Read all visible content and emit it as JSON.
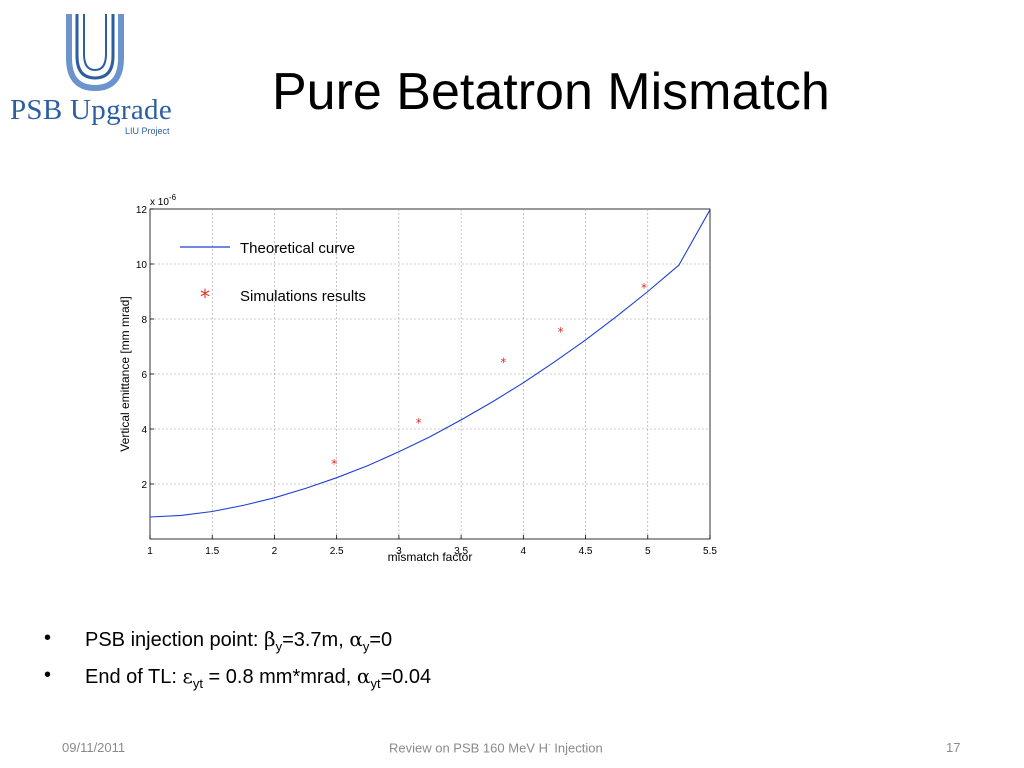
{
  "logo": {
    "main_text": "PSB Upgrade",
    "sub_text": "LIU Project",
    "color": "#2d5fa0"
  },
  "slide": {
    "title": "Pure Betatron Mismatch"
  },
  "bullets": [
    {
      "prefix": "PSB injection point: ",
      "sym1": "β",
      "sub1": "y",
      "mid": "=3.7m, ",
      "sym2": "α",
      "sub2": "y",
      "suffix": "=0"
    },
    {
      "prefix": "End of TL: ",
      "sym1": "ε",
      "sub1": "yt",
      "mid": " = 0.8 mm*mrad,  ",
      "sym2": "α",
      "sub2": "yt",
      "suffix": "=0.04"
    }
  ],
  "footer": {
    "date": "09/11/2011",
    "center_prefix": "Review on PSB 160 MeV H",
    "center_sup": "-",
    "center_suffix": " Injection",
    "page": "17"
  },
  "chart_data": {
    "type": "line",
    "title": "",
    "xlabel": "mismatch factor",
    "ylabel": "Vertical emittance [mm mrad]",
    "y_multiplier_label": "x 10",
    "y_multiplier_exp": "-6",
    "xlim": [
      1,
      5.5
    ],
    "ylim": [
      0,
      12
    ],
    "x_ticks": [
      1,
      1.5,
      2,
      2.5,
      3,
      3.5,
      4,
      4.5,
      5,
      5.5
    ],
    "x_tick_labels": [
      "1",
      "1.5",
      "2",
      "2.5",
      "3",
      "3.5",
      "4",
      "4.5",
      "5",
      "5.5"
    ],
    "y_ticks": [
      2,
      4,
      6,
      8,
      10,
      12
    ],
    "y_tick_labels": [
      "2",
      "4",
      "6",
      "8",
      "10",
      "12"
    ],
    "grid": true,
    "legend_position": "top-left",
    "series": [
      {
        "name": "Theoretical curve",
        "kind": "line",
        "color": "#1f3fd8",
        "x": [
          1.0,
          1.25,
          1.5,
          1.75,
          2.0,
          2.25,
          2.5,
          2.75,
          3.0,
          3.25,
          3.5,
          3.75,
          4.0,
          4.25,
          4.5,
          4.75,
          5.0,
          5.25,
          5.5
        ],
        "y": [
          0.8,
          0.86,
          1.0,
          1.22,
          1.5,
          1.84,
          2.23,
          2.67,
          3.17,
          3.72,
          4.33,
          4.98,
          5.68,
          6.44,
          7.24,
          8.1,
          9.0,
          9.96,
          11.97
        ]
      },
      {
        "name": "Simulations results",
        "kind": "scatter",
        "color": "#e0302a",
        "marker": "*",
        "x": [
          2.48,
          3.16,
          3.84,
          4.3,
          4.97
        ],
        "y": [
          2.8,
          4.3,
          6.5,
          7.6,
          9.2
        ]
      }
    ]
  }
}
